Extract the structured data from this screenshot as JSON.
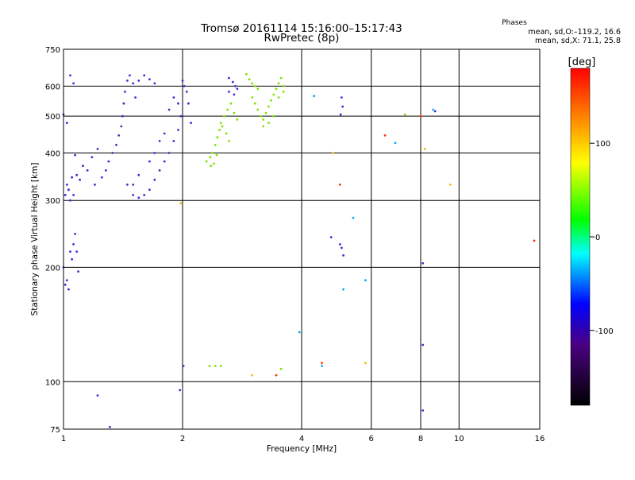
{
  "chart_data": {
    "type": "scatter",
    "title": "Tromsø 20161114 15:16:00–15:17:43",
    "subtitle": "RwPretec (8p)",
    "xlabel": "Frequency [MHz]",
    "ylabel": "Stationary phase Virtual Height [km]",
    "x_scale": "log",
    "y_scale": "log",
    "xlim": [
      1,
      16
    ],
    "ylim": [
      75,
      750
    ],
    "x_ticks": [
      1,
      2,
      4,
      6,
      8,
      10,
      16
    ],
    "y_ticks": [
      75,
      100,
      200,
      300,
      400,
      500,
      600,
      750
    ],
    "grid": true,
    "stats": {
      "heading": "Phases",
      "line1": "mean, sd,O:–119.2, 16.6",
      "line2": "mean, sd,X:  71.1, 25.8"
    },
    "colorbar": {
      "label": "[deg]",
      "range": [
        -180,
        180
      ],
      "ticks": [
        100,
        0,
        -100
      ],
      "colors": [
        "#000000",
        "#4b0082",
        "#0000ff",
        "#00ffff",
        "#00ff00",
        "#ffff00",
        "#ff0000"
      ]
    },
    "series": [
      {
        "values": [
          [
            1.0,
            505
          ],
          [
            1.02,
            480
          ],
          [
            1.04,
            640
          ],
          [
            1.06,
            610
          ],
          [
            1.07,
            395
          ],
          [
            1.05,
            345
          ],
          [
            1.03,
            320
          ],
          [
            1.1,
            340
          ],
          [
            1.15,
            360
          ],
          [
            1.2,
            330
          ],
          [
            1.25,
            345
          ],
          [
            1.28,
            360
          ],
          [
            1.3,
            380
          ],
          [
            1.33,
            400
          ],
          [
            1.36,
            420
          ],
          [
            1.38,
            445
          ],
          [
            1.4,
            470
          ],
          [
            1.41,
            500
          ],
          [
            1.42,
            540
          ],
          [
            1.43,
            580
          ],
          [
            1.45,
            620
          ],
          [
            1.47,
            640
          ],
          [
            1.5,
            610
          ],
          [
            1.52,
            560
          ],
          [
            1.55,
            620
          ],
          [
            1.6,
            640
          ],
          [
            1.65,
            625
          ],
          [
            1.7,
            610
          ],
          [
            1.45,
            330
          ],
          [
            1.5,
            310
          ],
          [
            1.55,
            305
          ],
          [
            1.6,
            310
          ],
          [
            1.65,
            320
          ],
          [
            1.7,
            340
          ],
          [
            1.75,
            360
          ],
          [
            1.8,
            380
          ],
          [
            1.85,
            400
          ],
          [
            1.9,
            430
          ],
          [
            1.95,
            460
          ],
          [
            1.8,
            450
          ],
          [
            1.75,
            430
          ],
          [
            1.7,
            400
          ],
          [
            1.65,
            380
          ],
          [
            1.55,
            350
          ],
          [
            1.5,
            330
          ],
          [
            1.85,
            520
          ],
          [
            1.9,
            560
          ],
          [
            1.95,
            540
          ],
          [
            2.0,
            620
          ],
          [
            2.02,
            600
          ],
          [
            2.05,
            580
          ],
          [
            2.07,
            540
          ],
          [
            2.1,
            480
          ],
          [
            1.98,
            500
          ],
          [
            1.03,
            320
          ],
          [
            1.06,
            310
          ],
          [
            1.04,
            300
          ],
          [
            1.01,
            310
          ],
          [
            1.02,
            330
          ],
          [
            1.08,
            350
          ],
          [
            1.12,
            370
          ],
          [
            1.18,
            390
          ],
          [
            1.22,
            410
          ],
          [
            1.0,
            200
          ],
          [
            1.02,
            185
          ],
          [
            1.03,
            175
          ],
          [
            1.05,
            210
          ],
          [
            1.06,
            230
          ],
          [
            1.07,
            245
          ],
          [
            1.08,
            220
          ],
          [
            1.09,
            195
          ],
          [
            1.01,
            180
          ],
          [
            1.04,
            220
          ],
          [
            1.22,
            92
          ],
          [
            1.31,
            76
          ],
          [
            1.97,
            95
          ],
          [
            2.01,
            110
          ],
          [
            4.75,
            240
          ],
          [
            5.0,
            230
          ],
          [
            5.05,
            225
          ],
          [
            5.1,
            215
          ],
          [
            5.05,
            560
          ],
          [
            5.08,
            530
          ],
          [
            5.02,
            505
          ],
          [
            8.1,
            205
          ],
          [
            8.1,
            125
          ],
          [
            8.1,
            84
          ],
          [
            8.7,
            515
          ],
          [
            2.62,
            630
          ],
          [
            2.68,
            615
          ],
          [
            2.72,
            600
          ],
          [
            2.75,
            590
          ],
          [
            2.62,
            580
          ],
          [
            2.7,
            570
          ]
        ],
        "color": "#3b2fd0"
      },
      {
        "values": [
          [
            4.3,
            565
          ],
          [
            3.95,
            135
          ],
          [
            5.1,
            175
          ],
          [
            5.4,
            270
          ],
          [
            5.8,
            185
          ],
          [
            6.9,
            425
          ],
          [
            8.6,
            520
          ],
          [
            4.5,
            110
          ]
        ],
        "color": "#00aaff"
      },
      {
        "values": [
          [
            2.9,
            645
          ],
          [
            2.95,
            625
          ],
          [
            3.0,
            610
          ],
          [
            3.05,
            600
          ],
          [
            3.1,
            590
          ],
          [
            3.0,
            560
          ],
          [
            3.05,
            540
          ],
          [
            3.1,
            520
          ],
          [
            3.15,
            500
          ],
          [
            3.2,
            490
          ],
          [
            3.25,
            510
          ],
          [
            3.3,
            530
          ],
          [
            3.35,
            550
          ],
          [
            3.4,
            570
          ],
          [
            3.45,
            590
          ],
          [
            3.5,
            610
          ],
          [
            3.55,
            630
          ],
          [
            3.6,
            600
          ],
          [
            3.3,
            480
          ],
          [
            3.2,
            470
          ],
          [
            3.4,
            500
          ],
          [
            3.5,
            560
          ],
          [
            3.6,
            580
          ],
          [
            2.3,
            380
          ],
          [
            2.35,
            390
          ],
          [
            2.38,
            400
          ],
          [
            2.42,
            420
          ],
          [
            2.45,
            440
          ],
          [
            2.48,
            460
          ],
          [
            2.5,
            480
          ],
          [
            2.55,
            500
          ],
          [
            2.6,
            520
          ],
          [
            2.65,
            540
          ],
          [
            2.7,
            510
          ],
          [
            2.75,
            490
          ],
          [
            2.36,
            370
          ],
          [
            2.4,
            375
          ],
          [
            2.44,
            395
          ],
          [
            2.52,
            470
          ],
          [
            2.58,
            450
          ],
          [
            2.62,
            430
          ],
          [
            2.34,
            110
          ],
          [
            2.42,
            110
          ],
          [
            2.5,
            110
          ],
          [
            3.55,
            108
          ],
          [
            7.3,
            505
          ]
        ],
        "color": "#7fe000"
      },
      {
        "values": [
          [
            1.98,
            295
          ],
          [
            4.8,
            400
          ],
          [
            8.2,
            410
          ],
          [
            9.5,
            330
          ],
          [
            5.8,
            112
          ],
          [
            3.0,
            104
          ]
        ],
        "color": "#f0c000"
      },
      {
        "values": [
          [
            5.0,
            330
          ],
          [
            6.5,
            445
          ],
          [
            4.5,
            112
          ],
          [
            15.5,
            235
          ],
          [
            3.45,
            104
          ],
          [
            8.0,
            500
          ]
        ],
        "color": "#ff3300"
      }
    ]
  }
}
